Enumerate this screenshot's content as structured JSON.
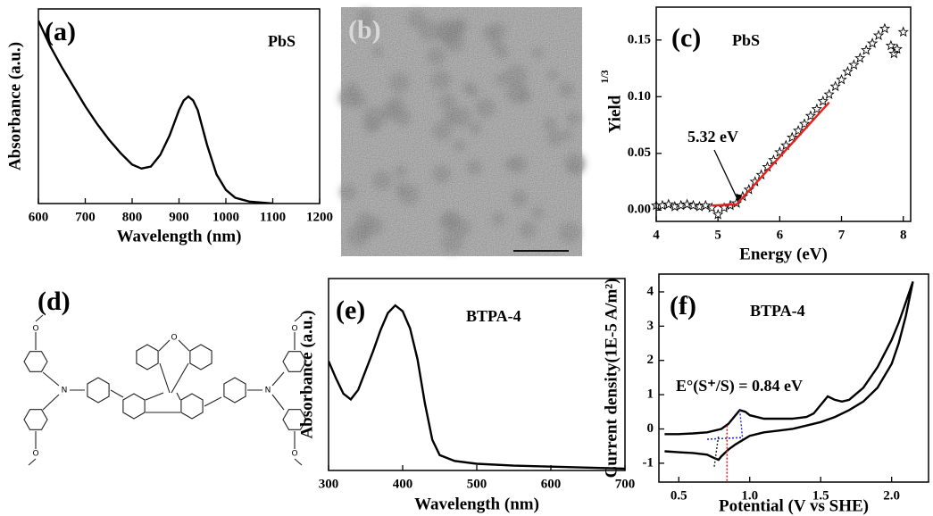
{
  "chart_data": [
    {
      "type": "line",
      "panel": "(a)",
      "annotation": "PbS",
      "xlabel": "Wavelength (nm)",
      "ylabel": "Absorbance (a.u.)",
      "xlim": [
        600,
        1200
      ],
      "ylim": [
        0,
        1
      ],
      "xticks": [
        600,
        700,
        800,
        900,
        1000,
        1100,
        1200
      ],
      "series": [
        {
          "color": "#000000",
          "x": [
            600,
            625,
            650,
            675,
            700,
            725,
            750,
            775,
            800,
            820,
            840,
            860,
            880,
            900,
            910,
            920,
            930,
            940,
            960,
            980,
            1000,
            1020,
            1050,
            1100
          ],
          "values": [
            0.94,
            0.81,
            0.7,
            0.6,
            0.5,
            0.41,
            0.33,
            0.26,
            0.2,
            0.18,
            0.19,
            0.25,
            0.35,
            0.48,
            0.53,
            0.55,
            0.53,
            0.48,
            0.3,
            0.15,
            0.07,
            0.03,
            0.01,
            0.0
          ]
        }
      ]
    },
    {
      "type": "line",
      "panel": "(c)",
      "annotation": "PbS",
      "xlabel": "Energy (eV)",
      "ylabel": "Yield",
      "ylabel_sup": "1/3",
      "xlim": [
        4,
        8.12
      ],
      "ylim": [
        -0.01,
        0.179
      ],
      "xticks": [
        4,
        5,
        6,
        7,
        8
      ],
      "yticks": [
        {
          "value": 0,
          "label": "0.00"
        },
        0.05,
        {
          "value": 0.1,
          "label": "0.10"
        },
        0.15
      ],
      "onset": {
        "value": 5.32,
        "label": "5.32 eV"
      },
      "series": [
        {
          "color": "#000000",
          "marker": "star",
          "x": [
            4.0,
            4.1,
            4.2,
            4.3,
            4.4,
            4.5,
            4.6,
            4.7,
            4.8,
            4.9,
            5.0,
            5.1,
            5.2,
            5.3,
            5.4,
            5.5,
            5.6,
            5.7,
            5.8,
            5.9,
            6.0,
            6.1,
            6.2,
            6.3,
            6.4,
            6.5,
            6.6,
            6.7,
            6.8,
            6.9,
            7.0,
            7.1,
            7.2,
            7.3,
            7.4,
            7.5,
            7.6,
            7.7,
            7.8,
            7.85,
            7.9,
            8.0
          ],
          "values": [
            0.004,
            0.004,
            0.005,
            0.003,
            0.004,
            0.005,
            0.004,
            0.003,
            0.004,
            0.002,
            -0.004,
            0.002,
            0.004,
            0.006,
            0.012,
            0.018,
            0.025,
            0.031,
            0.038,
            0.044,
            0.051,
            0.057,
            0.064,
            0.07,
            0.076,
            0.083,
            0.089,
            0.096,
            0.102,
            0.109,
            0.115,
            0.122,
            0.128,
            0.134,
            0.141,
            0.147,
            0.154,
            0.16,
            0.145,
            0.138,
            0.142,
            0.157
          ]
        },
        {
          "color": "#e8201c",
          "x": [
            4.9,
            5.3,
            6.8
          ],
          "values": [
            0.004,
            0.005,
            0.095
          ]
        }
      ]
    },
    {
      "type": "line",
      "panel": "(e)",
      "annotation": "BTPA-4",
      "xlabel": "Wavelength (nm)",
      "ylabel": "Absorbance (a.u.)",
      "xlim": [
        300,
        700
      ],
      "ylim": [
        0,
        1
      ],
      "xticks": [
        300,
        400,
        500,
        600,
        700
      ],
      "series": [
        {
          "color": "#000000",
          "x": [
            300,
            310,
            320,
            330,
            340,
            350,
            360,
            370,
            380,
            390,
            400,
            410,
            420,
            430,
            440,
            450,
            470,
            500,
            550,
            600,
            650,
            700
          ],
          "values": [
            0.57,
            0.48,
            0.4,
            0.37,
            0.42,
            0.52,
            0.62,
            0.73,
            0.82,
            0.86,
            0.83,
            0.74,
            0.58,
            0.35,
            0.16,
            0.08,
            0.05,
            0.035,
            0.025,
            0.02,
            0.015,
            0.01
          ]
        }
      ]
    },
    {
      "type": "line",
      "panel": "(f)",
      "annotation": "BTPA-4",
      "xlabel": "Potential (V vs SHE)",
      "ylabel": "Current density(1E-5 A/m²)",
      "xlim": [
        0.36,
        2.26
      ],
      "ylim": [
        -1.55,
        4.52
      ],
      "xticks": [
        0.5,
        {
          "value": 1,
          "label": "1.0"
        },
        1.5,
        {
          "value": 2,
          "label": "2.0"
        }
      ],
      "yticks": [
        -1,
        0,
        1,
        2,
        3,
        4
      ],
      "onset": {
        "value": 0.84,
        "label": "E°(S⁺/S) = 0.84 eV"
      },
      "series": [
        {
          "color": "#000000",
          "x": [
            0.4,
            0.5,
            0.6,
            0.7,
            0.8,
            0.85,
            0.9,
            0.93,
            0.97,
            1.0,
            1.1,
            1.2,
            1.3,
            1.4,
            1.45,
            1.5,
            1.55,
            1.6,
            1.65,
            1.7,
            1.8,
            1.9,
            2.0,
            2.05,
            2.1,
            2.15,
            2.1,
            2.05,
            2.0,
            1.9,
            1.8,
            1.7,
            1.6,
            1.5,
            1.4,
            1.3,
            1.2,
            1.1,
            1.0,
            0.9,
            0.85,
            0.8,
            0.78,
            0.75,
            0.7,
            0.6,
            0.5,
            0.4
          ],
          "values": [
            -0.15,
            -0.15,
            -0.13,
            -0.1,
            0.0,
            0.15,
            0.4,
            0.55,
            0.5,
            0.4,
            0.3,
            0.3,
            0.3,
            0.35,
            0.45,
            0.7,
            0.95,
            0.85,
            0.8,
            0.85,
            1.2,
            1.8,
            2.6,
            3.1,
            3.7,
            4.3,
            3.3,
            2.5,
            1.9,
            1.2,
            0.8,
            0.55,
            0.35,
            0.2,
            0.1,
            0.0,
            -0.05,
            -0.1,
            -0.2,
            -0.45,
            -0.6,
            -0.8,
            -0.9,
            -0.85,
            -0.75,
            -0.7,
            -0.68,
            -0.65
          ]
        }
      ]
    }
  ],
  "image_panel": {
    "label": "(b)"
  },
  "structure_panel": {
    "label": "(d)"
  }
}
